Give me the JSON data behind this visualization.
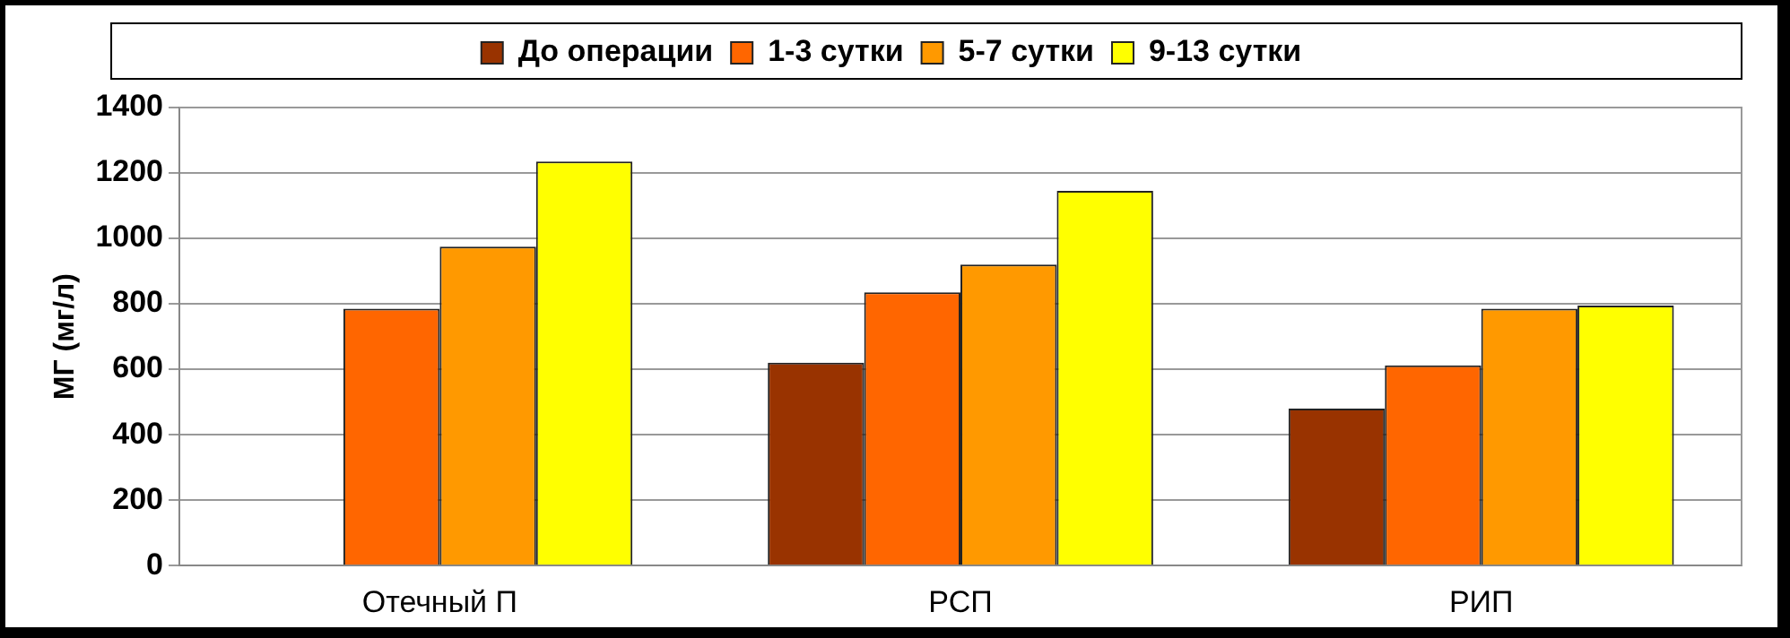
{
  "chart_data": {
    "type": "bar",
    "ylabel": "МГ (мг/л)",
    "categories": [
      "Отечный П",
      "РСП",
      "РИП"
    ],
    "series": [
      {
        "name": "До операции",
        "color": "#993300",
        "values": [
          null,
          620,
          480
        ]
      },
      {
        "name": "1-3 сутки",
        "color": "#ff6600",
        "values": [
          785,
          835,
          612
        ]
      },
      {
        "name": "5-7 сутки",
        "color": "#ff9900",
        "values": [
          975,
          920,
          785
        ]
      },
      {
        "name": "9-13 сутки",
        "color": "#ffff00",
        "values": [
          1235,
          1145,
          795
        ]
      }
    ],
    "ylim": [
      0,
      1400
    ],
    "yticks": [
      0,
      200,
      400,
      600,
      800,
      1000,
      1200,
      1400
    ],
    "grid": "y",
    "legend": "top"
  }
}
